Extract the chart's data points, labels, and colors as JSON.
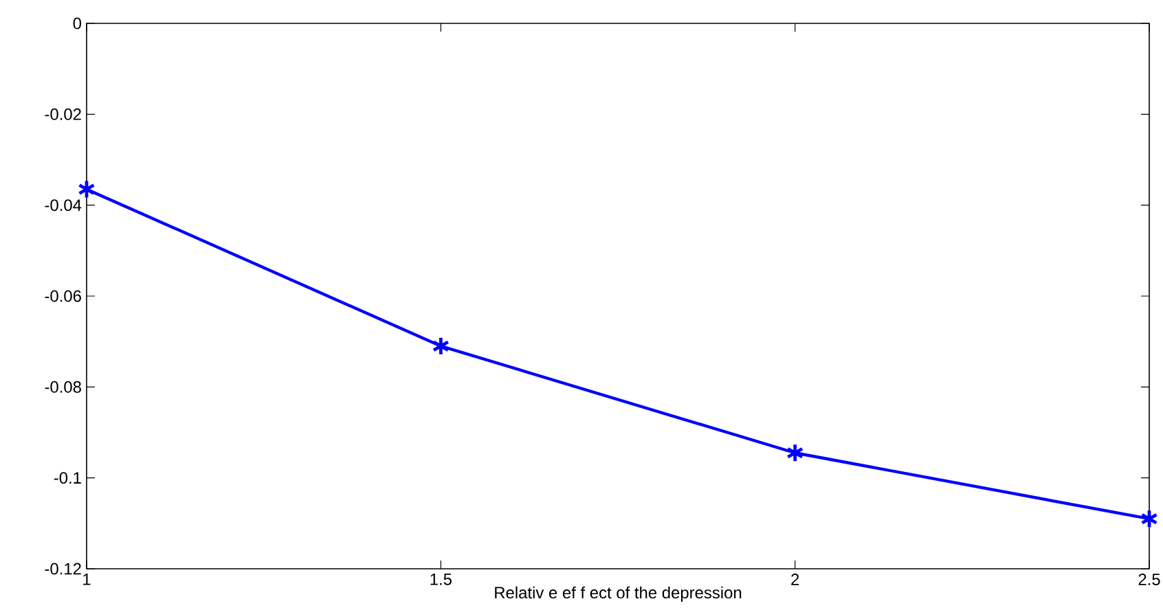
{
  "chart_data": {
    "type": "line",
    "xlabel": "Relativ e ef f ect of the depression",
    "x": [
      1,
      1.5,
      2,
      2.5
    ],
    "series": [
      {
        "color": "#0000ff",
        "values": [
          -0.0365,
          -0.071,
          -0.0945,
          -0.109
        ]
      }
    ],
    "xlim": [
      1,
      2.5
    ],
    "xticks": [
      1,
      1.5,
      2,
      2.5
    ],
    "ylim": [
      -0.12,
      0
    ],
    "yticks": [
      -0.12,
      -0.1,
      -0.08,
      -0.06,
      -0.04,
      -0.02,
      0
    ],
    "marker": "cross",
    "line_style": "solid",
    "grid": false
  }
}
